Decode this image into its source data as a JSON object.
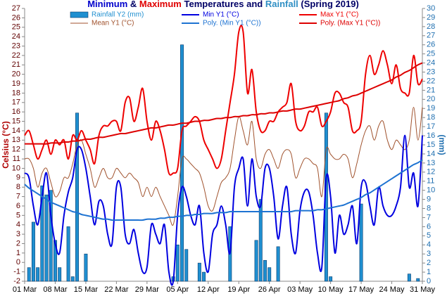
{
  "chart_data": {
    "type": "combo",
    "title_parts": [
      {
        "text": "Minimum",
        "color": "#0000cc"
      },
      {
        "text": " & ",
        "color": "#000066"
      },
      {
        "text": "Maximum",
        "color": "#e00000"
      },
      {
        "text": " Temperatures and ",
        "color": "#000066"
      },
      {
        "text": "Rainfall",
        "color": "#2f8fc4"
      },
      {
        "text": " (Spring 2019)",
        "color": "#000066"
      }
    ],
    "y_label": "Celsius (°C)",
    "y2_label": "(mm)",
    "categories": [
      "01 Mar",
      null,
      null,
      null,
      null,
      null,
      null,
      "08 Mar",
      null,
      null,
      null,
      null,
      null,
      null,
      "15 Mar",
      null,
      null,
      null,
      null,
      null,
      null,
      "22 Mar",
      null,
      null,
      null,
      null,
      null,
      null,
      "29 Mar",
      null,
      null,
      null,
      null,
      null,
      null,
      "05 Apr",
      null,
      null,
      null,
      null,
      null,
      null,
      "12 Apr",
      null,
      null,
      null,
      null,
      null,
      null,
      "19 Apr",
      null,
      null,
      null,
      null,
      null,
      null,
      "26 Apr",
      null,
      null,
      null,
      null,
      null,
      null,
      "03 May",
      null,
      null,
      null,
      null,
      null,
      null,
      "10 May",
      null,
      null,
      null,
      null,
      null,
      null,
      "17 May",
      null,
      null,
      null,
      null,
      null,
      null,
      "24 May",
      null,
      null,
      null,
      null,
      null,
      null,
      "31 May"
    ],
    "ylim": [
      -2,
      27
    ],
    "yticks": [
      -2,
      -1,
      0,
      1,
      2,
      3,
      4,
      5,
      6,
      7,
      8,
      9,
      10,
      11,
      12,
      13,
      14,
      15,
      16,
      17,
      18,
      19,
      20,
      21,
      22,
      23,
      24,
      25,
      26,
      27
    ],
    "y2lim": [
      0,
      30
    ],
    "y2ticks": [
      0,
      1,
      2,
      3,
      4,
      5,
      6,
      7,
      8,
      9,
      10,
      11,
      12,
      13,
      14,
      15,
      16,
      17,
      18,
      19,
      20,
      21,
      22,
      23,
      24,
      25,
      26,
      27,
      28,
      29,
      30
    ],
    "series": [
      {
        "name": "Rainfall Y2 (mm)",
        "kind": "bar",
        "axis": "y2",
        "color": "#1f8fd0",
        "values": [
          0,
          1.5,
          6.5,
          1.5,
          10.5,
          9.5,
          10,
          4.5,
          1.5,
          0,
          6,
          0.5,
          18.5,
          0,
          3,
          0,
          0,
          0,
          0,
          0,
          0,
          0,
          0,
          0,
          0,
          0,
          0,
          0,
          0,
          0,
          0,
          0,
          0,
          0,
          0.5,
          4,
          26,
          3.5,
          0,
          0,
          2,
          1,
          0,
          0,
          0,
          0,
          0,
          6,
          0,
          0,
          0,
          0,
          0,
          4.5,
          9,
          2.3,
          1.5,
          0,
          3.8,
          0,
          0,
          0,
          0,
          0,
          0,
          0,
          0,
          0,
          0,
          18.5,
          0.5,
          0,
          0,
          0,
          0,
          0,
          0,
          8.5,
          0,
          0,
          0,
          0,
          0,
          0,
          0,
          0,
          0,
          0,
          0.8,
          0,
          0.3,
          0
        ]
      },
      {
        "name": "Min Y1 (°C)",
        "kind": "line",
        "color": "#0000e0",
        "values": [
          9.5,
          9,
          6,
          4,
          7,
          9.5,
          5,
          2,
          1,
          5,
          7.5,
          9,
          12,
          12,
          10,
          7,
          4,
          6.5,
          6,
          3,
          2,
          8,
          8,
          3,
          2,
          3.5,
          1,
          -1,
          -0.5,
          4,
          3,
          2,
          4,
          -1,
          -2,
          5,
          8,
          7,
          5,
          4,
          6,
          1,
          -1,
          3,
          4,
          6,
          4,
          1,
          8,
          10,
          11,
          6,
          11,
          7,
          6,
          10,
          10,
          7,
          2.5,
          6,
          8,
          3,
          1,
          5.5,
          7.5,
          7.5,
          5,
          1,
          -0.5,
          9,
          7,
          1,
          5,
          3,
          4,
          6,
          2,
          8,
          8.5,
          6,
          4,
          8,
          6,
          5,
          5,
          6,
          8,
          13.5,
          8,
          9.5,
          6,
          13.5
        ]
      },
      {
        "name": "Max Y1 (°C)",
        "kind": "line",
        "color": "#ee0000",
        "values": [
          13.5,
          14,
          12.5,
          11,
          12,
          13,
          11.5,
          13,
          12.5,
          13,
          11,
          13.5,
          13,
          14,
          13,
          12,
          10.5,
          13.5,
          14.5,
          14.5,
          15,
          15,
          14,
          17,
          17.5,
          15,
          16.5,
          18.5,
          15,
          13,
          15,
          14,
          12,
          9.5,
          9.5,
          10,
          14,
          14.5,
          15,
          15.5,
          15,
          13,
          12,
          11,
          10,
          11,
          14,
          17,
          20,
          24.5,
          24.5,
          18,
          20.5,
          16,
          14,
          14,
          15,
          15,
          16,
          16.5,
          17,
          19,
          15,
          14,
          14.5,
          16,
          16,
          16.5,
          14.5,
          15,
          16,
          18,
          18,
          17,
          16.5,
          14,
          14,
          15,
          20,
          22,
          20,
          21,
          22.5,
          21,
          19,
          21,
          18.5,
          18,
          18,
          22,
          19,
          19.5
        ]
      },
      {
        "name": "Mean Y1 (°C)",
        "kind": "line",
        "color": "#a0522d",
        "values": [
          11,
          11,
          10,
          8,
          9.5,
          10,
          8.5,
          7,
          7.5,
          9,
          9,
          10.5,
          12.5,
          13,
          11.5,
          10,
          8,
          9,
          10,
          9,
          9,
          10,
          9.5,
          9,
          9.5,
          9,
          8.5,
          7,
          8,
          7,
          8,
          7,
          6,
          5,
          4,
          7,
          11,
          11,
          10.5,
          10,
          9.5,
          8,
          6,
          5.5,
          7,
          8.5,
          9,
          10,
          13,
          15.5,
          14,
          12.5,
          15,
          11,
          10,
          11.5,
          12,
          11,
          10,
          11.5,
          12,
          11.5,
          9,
          10,
          11,
          11,
          10.5,
          10,
          7,
          12,
          11.5,
          11,
          11,
          11.5,
          11,
          9,
          10.5,
          12.5,
          14,
          14.5,
          13,
          14.5,
          15,
          13,
          12,
          13,
          12.5,
          12,
          13,
          16.5,
          13,
          16.5
        ]
      },
      {
        "name": "Poly. (Min Y1 (°C))",
        "kind": "line",
        "color": "#1e73d2",
        "values": [
          8.3,
          7.9,
          7.6,
          7.3,
          7.0,
          6.7,
          6.4,
          6.2,
          6.0,
          5.8,
          5.6,
          5.4,
          5.3,
          5.1,
          5.0,
          4.9,
          4.8,
          4.7,
          4.6,
          4.6,
          4.5,
          4.5,
          4.5,
          4.5,
          4.5,
          4.5,
          4.5,
          4.5,
          4.6,
          4.6,
          4.6,
          4.7,
          4.7,
          4.8,
          4.8,
          4.9,
          4.9,
          5.0,
          5.0,
          5.1,
          5.1,
          5.2,
          5.2,
          5.2,
          5.3,
          5.3,
          5.3,
          5.4,
          5.4,
          5.4,
          5.4,
          5.4,
          5.4,
          5.4,
          5.4,
          5.4,
          5.4,
          5.4,
          5.4,
          5.4,
          5.4,
          5.4,
          5.5,
          5.5,
          5.5,
          5.5,
          5.5,
          5.6,
          5.6,
          5.7,
          5.8,
          5.9,
          6.0,
          6.1,
          6.3,
          6.5,
          6.7,
          6.9,
          7.2,
          7.4,
          7.7,
          8.0,
          8.3,
          8.6,
          8.9,
          9.2,
          9.5,
          9.8,
          10.1,
          10.4,
          10.6,
          10.9
        ]
      },
      {
        "name": "Poly. (Max Y1 (°C))",
        "kind": "line",
        "color": "#dd0000",
        "values": [
          12.6,
          12.6,
          12.6,
          12.6,
          12.6,
          12.6,
          12.7,
          12.7,
          12.7,
          12.8,
          12.8,
          12.9,
          12.9,
          13.0,
          13.1,
          13.1,
          13.2,
          13.3,
          13.3,
          13.4,
          13.5,
          13.6,
          13.7,
          13.7,
          13.8,
          13.9,
          14.0,
          14.1,
          14.2,
          14.3,
          14.3,
          14.4,
          14.5,
          14.6,
          14.6,
          14.7,
          14.8,
          14.8,
          14.9,
          15.0,
          15.0,
          15.1,
          15.1,
          15.2,
          15.3,
          15.3,
          15.4,
          15.4,
          15.5,
          15.5,
          15.6,
          15.6,
          15.7,
          15.7,
          15.8,
          15.8,
          15.9,
          15.9,
          16.0,
          16.1,
          16.1,
          16.2,
          16.3,
          16.3,
          16.4,
          16.5,
          16.6,
          16.7,
          16.8,
          16.9,
          17.0,
          17.1,
          17.2,
          17.4,
          17.5,
          17.7,
          17.8,
          18.0,
          18.2,
          18.4,
          18.6,
          18.8,
          19.0,
          19.2,
          19.4,
          19.7,
          19.9,
          20.2,
          20.4,
          20.7,
          21.0,
          21.2
        ]
      }
    ]
  }
}
